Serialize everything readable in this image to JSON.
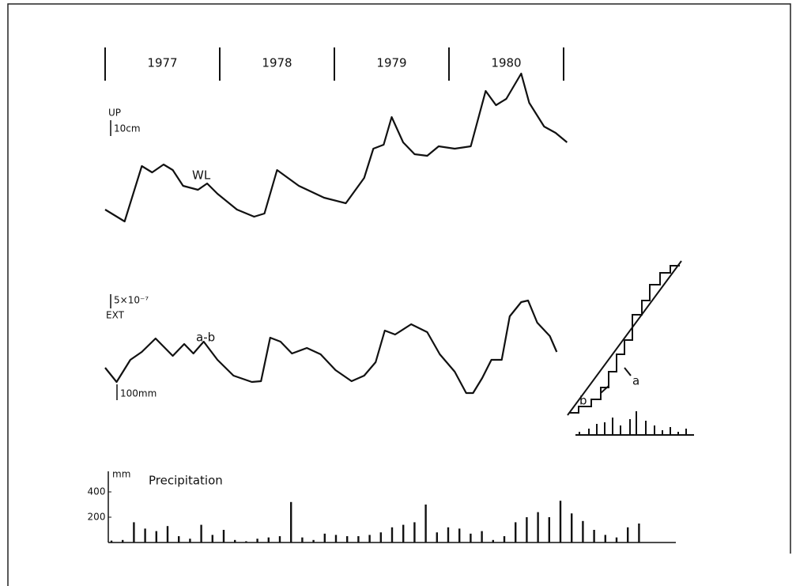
{
  "chart_data": [
    {
      "type": "line",
      "periods": [
        "1977",
        "1978",
        "1979",
        "1980"
      ],
      "annotations": [
        "UP",
        "10cm"
      ],
      "xlim": [
        1977,
        1981.1
      ],
      "ylim": [
        0,
        95
      ],
      "x": [
        1977.0,
        1977.17,
        1977.32,
        1977.41,
        1977.51,
        1977.59,
        1977.68,
        1977.81,
        1977.89,
        1977.98,
        1978.15,
        1978.3,
        1978.39,
        1978.5,
        1978.69,
        1978.91,
        1979.1,
        1979.26,
        1979.34,
        1979.43,
        1979.5,
        1979.6,
        1979.7,
        1979.81,
        1979.91,
        1980.05,
        1980.19,
        1980.32,
        1980.41,
        1980.5,
        1980.63,
        1980.7,
        1980.83,
        1980.93,
        1981.03
      ],
      "series": [
        {
          "name": "WL",
          "color": "#111111",
          "values": [
            7.5,
            0,
            35,
            31,
            36,
            32.5,
            22.5,
            20,
            24,
            17.5,
            7.5,
            3,
            5,
            32.5,
            22.5,
            15,
            11.5,
            27.5,
            46,
            48.5,
            66,
            50,
            42.5,
            41.5,
            47.5,
            46,
            47.5,
            82.5,
            73.5,
            77.5,
            93.5,
            75,
            60,
            56,
            50
          ]
        }
      ]
    },
    {
      "type": "line",
      "annotations": [
        "5×10⁻⁷",
        "EXT",
        "100mm"
      ],
      "xlim": [
        1977,
        1981.1
      ],
      "ylim": [
        0,
        36
      ],
      "x": [
        1977.0,
        1977.1,
        1977.22,
        1977.32,
        1977.44,
        1977.59,
        1977.69,
        1977.77,
        1977.86,
        1977.98,
        1978.12,
        1978.28,
        1978.36,
        1978.44,
        1978.53,
        1978.63,
        1978.76,
        1978.88,
        1979.01,
        1979.15,
        1979.26,
        1979.36,
        1979.44,
        1979.53,
        1979.67,
        1979.81,
        1979.92,
        1980.05,
        1980.15,
        1980.21,
        1980.29,
        1980.37,
        1980.46,
        1980.53,
        1980.63,
        1980.69,
        1980.77,
        1980.88,
        1980.94
      ],
      "series": [
        {
          "name": "a-b",
          "color": "#111111",
          "values": [
            10.5,
            5.1,
            13.5,
            16.5,
            21.6,
            15,
            19.5,
            15.9,
            20.4,
            13.5,
            7.5,
            5.1,
            5.4,
            21.9,
            20.4,
            15.9,
            18,
            15.6,
            9.6,
            5.4,
            7.5,
            12.6,
            24.6,
            23.1,
            27,
            24,
            15.6,
            9,
            0.9,
            0.9,
            6.6,
            13.5,
            13.5,
            30,
            35.4,
            36,
            27.6,
            22.5,
            16.5
          ]
        }
      ]
    },
    {
      "type": "bar",
      "title": "Precipitation",
      "y_unit": "mm",
      "ylim": [
        0,
        400
      ],
      "yticks": [
        200,
        400
      ],
      "color": "#111111",
      "values": [
        15,
        20,
        160,
        110,
        90,
        130,
        50,
        30,
        140,
        60,
        100,
        20,
        10,
        30,
        40,
        50,
        320,
        40,
        20,
        70,
        60,
        50,
        50,
        60,
        80,
        120,
        140,
        160,
        300,
        80,
        120,
        110,
        70,
        90,
        20,
        50,
        160,
        200,
        240,
        200,
        330,
        230,
        170,
        100,
        60,
        40,
        120,
        150
      ]
    }
  ],
  "inset": {
    "labels": [
      "a",
      "b"
    ]
  }
}
